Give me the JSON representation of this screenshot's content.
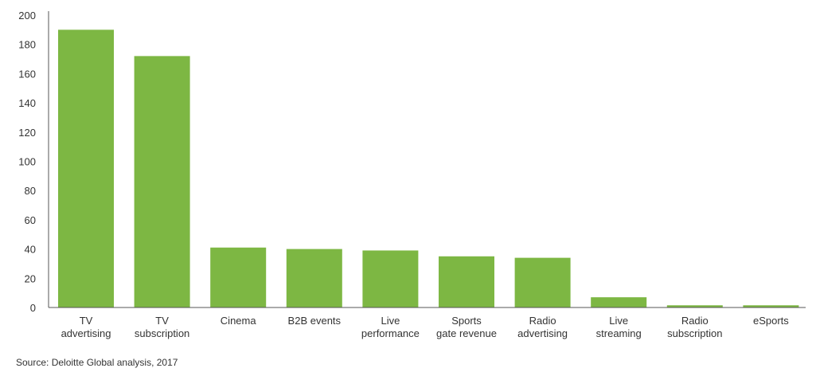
{
  "chart_data": {
    "type": "bar",
    "categories": [
      [
        "TV",
        "advertising"
      ],
      [
        "TV",
        "subscription"
      ],
      [
        "Cinema"
      ],
      [
        "B2B events"
      ],
      [
        "Live",
        "performance"
      ],
      [
        "Sports",
        "gate revenue"
      ],
      [
        "Radio",
        "advertising"
      ],
      [
        "Live",
        "streaming"
      ],
      [
        "Radio",
        "subscription"
      ],
      [
        "eSports"
      ]
    ],
    "values": [
      190,
      172,
      41,
      40,
      39,
      35,
      34,
      7,
      1.5,
      1.5
    ],
    "ylim": [
      0,
      200
    ],
    "yticks": [
      0,
      20,
      40,
      60,
      80,
      100,
      120,
      140,
      160,
      180,
      200
    ],
    "grid": false,
    "bar_color": "#7db743",
    "axis_color": "#555555",
    "title": "",
    "xlabel": "",
    "ylabel": ""
  },
  "footer": {
    "source": "Source: Deloitte Global analysis, 2017"
  }
}
